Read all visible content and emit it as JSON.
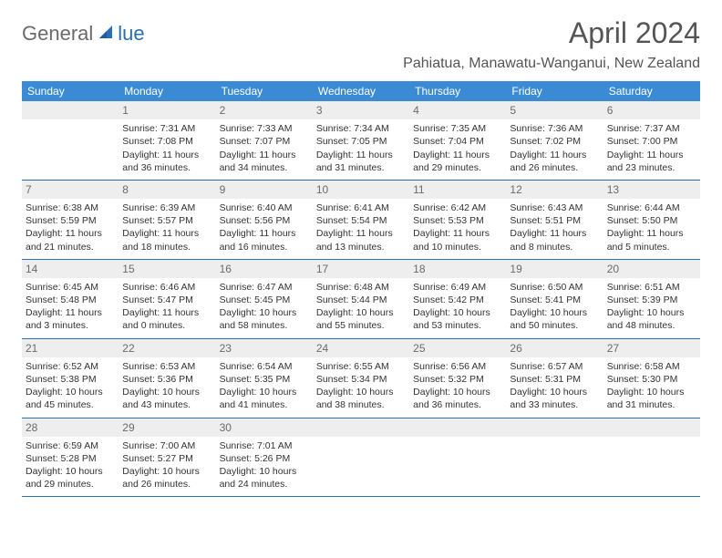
{
  "logo": {
    "part1": "General",
    "part2": "lue"
  },
  "title": "April 2024",
  "location": "Pahiatua, Manawatu-Wanganui, New Zealand",
  "colors": {
    "header_bg": "#3b8bd4",
    "border": "#2a6fb5",
    "daynum_bg": "#eeeeee",
    "text": "#333333",
    "title_text": "#555555"
  },
  "days_of_week": [
    "Sunday",
    "Monday",
    "Tuesday",
    "Wednesday",
    "Thursday",
    "Friday",
    "Saturday"
  ],
  "weeks": [
    [
      null,
      {
        "n": "1",
        "sr": "Sunrise: 7:31 AM",
        "ss": "Sunset: 7:08 PM",
        "d1": "Daylight: 11 hours",
        "d2": "and 36 minutes."
      },
      {
        "n": "2",
        "sr": "Sunrise: 7:33 AM",
        "ss": "Sunset: 7:07 PM",
        "d1": "Daylight: 11 hours",
        "d2": "and 34 minutes."
      },
      {
        "n": "3",
        "sr": "Sunrise: 7:34 AM",
        "ss": "Sunset: 7:05 PM",
        "d1": "Daylight: 11 hours",
        "d2": "and 31 minutes."
      },
      {
        "n": "4",
        "sr": "Sunrise: 7:35 AM",
        "ss": "Sunset: 7:04 PM",
        "d1": "Daylight: 11 hours",
        "d2": "and 29 minutes."
      },
      {
        "n": "5",
        "sr": "Sunrise: 7:36 AM",
        "ss": "Sunset: 7:02 PM",
        "d1": "Daylight: 11 hours",
        "d2": "and 26 minutes."
      },
      {
        "n": "6",
        "sr": "Sunrise: 7:37 AM",
        "ss": "Sunset: 7:00 PM",
        "d1": "Daylight: 11 hours",
        "d2": "and 23 minutes."
      }
    ],
    [
      {
        "n": "7",
        "sr": "Sunrise: 6:38 AM",
        "ss": "Sunset: 5:59 PM",
        "d1": "Daylight: 11 hours",
        "d2": "and 21 minutes."
      },
      {
        "n": "8",
        "sr": "Sunrise: 6:39 AM",
        "ss": "Sunset: 5:57 PM",
        "d1": "Daylight: 11 hours",
        "d2": "and 18 minutes."
      },
      {
        "n": "9",
        "sr": "Sunrise: 6:40 AM",
        "ss": "Sunset: 5:56 PM",
        "d1": "Daylight: 11 hours",
        "d2": "and 16 minutes."
      },
      {
        "n": "10",
        "sr": "Sunrise: 6:41 AM",
        "ss": "Sunset: 5:54 PM",
        "d1": "Daylight: 11 hours",
        "d2": "and 13 minutes."
      },
      {
        "n": "11",
        "sr": "Sunrise: 6:42 AM",
        "ss": "Sunset: 5:53 PM",
        "d1": "Daylight: 11 hours",
        "d2": "and 10 minutes."
      },
      {
        "n": "12",
        "sr": "Sunrise: 6:43 AM",
        "ss": "Sunset: 5:51 PM",
        "d1": "Daylight: 11 hours",
        "d2": "and 8 minutes."
      },
      {
        "n": "13",
        "sr": "Sunrise: 6:44 AM",
        "ss": "Sunset: 5:50 PM",
        "d1": "Daylight: 11 hours",
        "d2": "and 5 minutes."
      }
    ],
    [
      {
        "n": "14",
        "sr": "Sunrise: 6:45 AM",
        "ss": "Sunset: 5:48 PM",
        "d1": "Daylight: 11 hours",
        "d2": "and 3 minutes."
      },
      {
        "n": "15",
        "sr": "Sunrise: 6:46 AM",
        "ss": "Sunset: 5:47 PM",
        "d1": "Daylight: 11 hours",
        "d2": "and 0 minutes."
      },
      {
        "n": "16",
        "sr": "Sunrise: 6:47 AM",
        "ss": "Sunset: 5:45 PM",
        "d1": "Daylight: 10 hours",
        "d2": "and 58 minutes."
      },
      {
        "n": "17",
        "sr": "Sunrise: 6:48 AM",
        "ss": "Sunset: 5:44 PM",
        "d1": "Daylight: 10 hours",
        "d2": "and 55 minutes."
      },
      {
        "n": "18",
        "sr": "Sunrise: 6:49 AM",
        "ss": "Sunset: 5:42 PM",
        "d1": "Daylight: 10 hours",
        "d2": "and 53 minutes."
      },
      {
        "n": "19",
        "sr": "Sunrise: 6:50 AM",
        "ss": "Sunset: 5:41 PM",
        "d1": "Daylight: 10 hours",
        "d2": "and 50 minutes."
      },
      {
        "n": "20",
        "sr": "Sunrise: 6:51 AM",
        "ss": "Sunset: 5:39 PM",
        "d1": "Daylight: 10 hours",
        "d2": "and 48 minutes."
      }
    ],
    [
      {
        "n": "21",
        "sr": "Sunrise: 6:52 AM",
        "ss": "Sunset: 5:38 PM",
        "d1": "Daylight: 10 hours",
        "d2": "and 45 minutes."
      },
      {
        "n": "22",
        "sr": "Sunrise: 6:53 AM",
        "ss": "Sunset: 5:36 PM",
        "d1": "Daylight: 10 hours",
        "d2": "and 43 minutes."
      },
      {
        "n": "23",
        "sr": "Sunrise: 6:54 AM",
        "ss": "Sunset: 5:35 PM",
        "d1": "Daylight: 10 hours",
        "d2": "and 41 minutes."
      },
      {
        "n": "24",
        "sr": "Sunrise: 6:55 AM",
        "ss": "Sunset: 5:34 PM",
        "d1": "Daylight: 10 hours",
        "d2": "and 38 minutes."
      },
      {
        "n": "25",
        "sr": "Sunrise: 6:56 AM",
        "ss": "Sunset: 5:32 PM",
        "d1": "Daylight: 10 hours",
        "d2": "and 36 minutes."
      },
      {
        "n": "26",
        "sr": "Sunrise: 6:57 AM",
        "ss": "Sunset: 5:31 PM",
        "d1": "Daylight: 10 hours",
        "d2": "and 33 minutes."
      },
      {
        "n": "27",
        "sr": "Sunrise: 6:58 AM",
        "ss": "Sunset: 5:30 PM",
        "d1": "Daylight: 10 hours",
        "d2": "and 31 minutes."
      }
    ],
    [
      {
        "n": "28",
        "sr": "Sunrise: 6:59 AM",
        "ss": "Sunset: 5:28 PM",
        "d1": "Daylight: 10 hours",
        "d2": "and 29 minutes."
      },
      {
        "n": "29",
        "sr": "Sunrise: 7:00 AM",
        "ss": "Sunset: 5:27 PM",
        "d1": "Daylight: 10 hours",
        "d2": "and 26 minutes."
      },
      {
        "n": "30",
        "sr": "Sunrise: 7:01 AM",
        "ss": "Sunset: 5:26 PM",
        "d1": "Daylight: 10 hours",
        "d2": "and 24 minutes."
      },
      null,
      null,
      null,
      null
    ]
  ]
}
